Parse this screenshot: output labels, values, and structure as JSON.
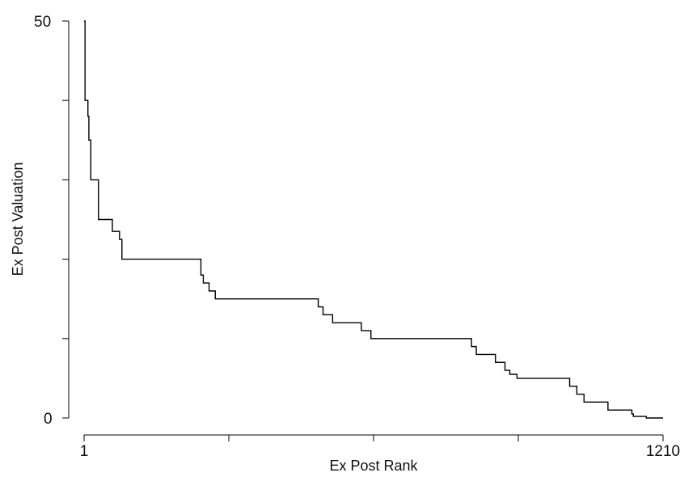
{
  "chart_data": {
    "type": "line",
    "step": true,
    "title": "",
    "xlabel": "Ex Post Rank",
    "ylabel": "Ex Post Valuation",
    "xlim": [
      1,
      1210
    ],
    "ylim": [
      0,
      50
    ],
    "x_tick_labels": [
      "1",
      "1210"
    ],
    "y_tick_labels": [
      "0",
      "50"
    ],
    "grid": false,
    "line_color": "#000000",
    "series": [
      {
        "x": [
          1,
          3,
          9,
          11,
          15,
          31,
          36,
          60,
          75,
          80,
          95,
          245,
          250,
          262,
          275,
          285,
          490,
          500,
          520,
          550,
          580,
          600,
          800,
          810,
          820,
          860,
          880,
          890,
          905,
          1005,
          1015,
          1030,
          1045,
          1095,
          1145,
          1148,
          1175,
          1210
        ],
        "y": [
          50,
          40,
          38,
          35,
          30,
          25,
          25,
          23.5,
          22.5,
          20,
          20,
          18,
          17,
          16,
          15,
          15,
          14,
          13,
          12,
          12,
          11,
          10,
          10,
          9,
          8,
          7,
          6,
          5.5,
          5,
          5,
          4,
          3,
          2,
          1,
          0.5,
          0.2,
          0,
          0
        ]
      }
    ]
  }
}
